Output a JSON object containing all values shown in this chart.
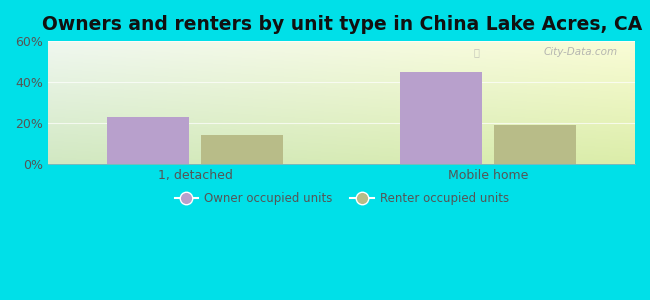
{
  "title": "Owners and renters by unit type in China Lake Acres, CA",
  "categories": [
    "1, detached",
    "Mobile home"
  ],
  "owner_values": [
    23,
    45
  ],
  "renter_values": [
    14,
    19
  ],
  "owner_color": "#b8a0cc",
  "renter_color": "#b8bc88",
  "owner_label": "Owner occupied units",
  "renter_label": "Renter occupied units",
  "ylim": [
    0,
    60
  ],
  "yticks": [
    0,
    20,
    40,
    60
  ],
  "ytick_labels": [
    "0%",
    "20%",
    "40%",
    "60%"
  ],
  "bg_outer": "#00e0e8",
  "watermark": "City-Data.com",
  "bar_width": 0.28,
  "title_fontsize": 13.5
}
